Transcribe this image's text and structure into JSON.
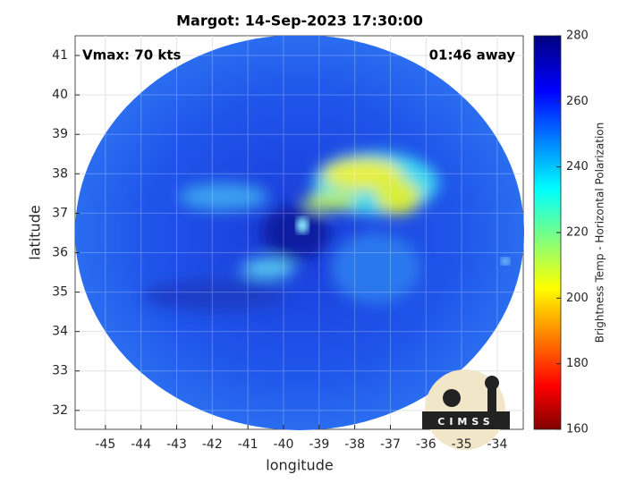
{
  "chart_data": {
    "type": "map",
    "title": "Margot: 14-Sep-2023 17:30:00",
    "xlabel": "longitude",
    "ylabel": "latitude",
    "xlim": [
      -45.85,
      -33.27
    ],
    "ylim": [
      31.52,
      41.5
    ],
    "xticks": [
      -45,
      -44,
      -43,
      -42,
      -41,
      -40,
      -39,
      -38,
      -37,
      -36,
      -35,
      -34
    ],
    "yticks": [
      32,
      33,
      34,
      35,
      36,
      37,
      38,
      39,
      40,
      41
    ],
    "grid": true,
    "annotations": [
      "Vmax: 70 kts",
      "01:46 away"
    ],
    "logo": "CIMSS",
    "colorbar": {
      "label": "Brightness Temp - Horizontal Polarization",
      "lim": [
        160,
        280
      ],
      "ticks": [
        160,
        180,
        200,
        220,
        240,
        260,
        280
      ],
      "colormap": "jet"
    }
  }
}
